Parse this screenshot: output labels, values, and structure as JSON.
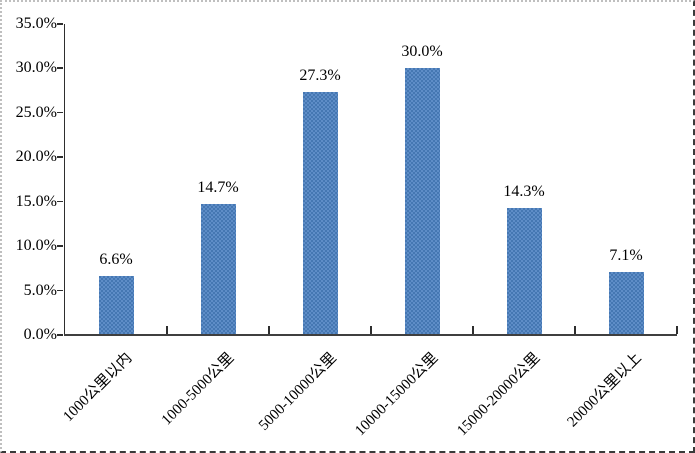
{
  "chart_data": {
    "type": "bar",
    "categories": [
      "1000公里以内",
      "1000-5000公里",
      "5000-10000公里",
      "10000-15000公里",
      "15000-20000公里",
      "20000公里以上"
    ],
    "values": [
      6.6,
      14.7,
      27.3,
      30.0,
      14.3,
      7.1
    ],
    "value_labels": [
      "6.6%",
      "14.7%",
      "27.3%",
      "30.0%",
      "14.3%",
      "7.1%"
    ],
    "title": "",
    "xlabel": "",
    "ylabel": "",
    "ylim": [
      0,
      35
    ],
    "ytick_values": [
      0,
      5,
      10,
      15,
      20,
      25,
      30,
      35
    ],
    "ytick_labels": [
      "0.0%",
      "5.0%",
      "10.0%",
      "15.0%",
      "20.0%",
      "25.0%",
      "30.0%",
      "35.0%"
    ],
    "grid": false,
    "legend": false,
    "bar_color": "#4f81bd",
    "axis_color": "#2e2e2e"
  }
}
